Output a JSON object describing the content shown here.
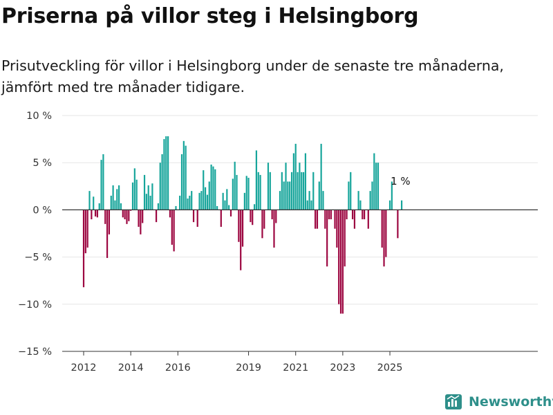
{
  "title": "Priserna på villor steg i Helsingborg",
  "subtitle": "Prisutveckling för villor i Helsingborg under de senaste tre månaderna, jämfört med tre månader tidigare.",
  "brand": "Newsworthy",
  "colors": {
    "positive": "#17a59b",
    "negative": "#9c0640",
    "grid": "#e6e6e6",
    "zero_line": "#333333",
    "brand": "#2e8f8a"
  },
  "chart_data": {
    "type": "bar",
    "x_start": "2012-01",
    "x_interval": "month",
    "ylim": [
      -15,
      10
    ],
    "y_ticks": [
      10,
      5,
      0,
      -5,
      -10,
      -15
    ],
    "y_tick_labels": [
      "10 %",
      "5 %",
      "0 %",
      "−5 %",
      "−10 %",
      "−15 %"
    ],
    "x_ticks": [
      "2012",
      "2014",
      "2016",
      "2019",
      "2021",
      "2023",
      "2025"
    ],
    "x_tick_dates": [
      "2012-01",
      "2014-01",
      "2016-01",
      "2019-01",
      "2021-01",
      "2023-01",
      "2025-01"
    ],
    "last_label": "1 %",
    "grid": true,
    "values": [
      -8.2,
      -4.6,
      -4.0,
      2.0,
      -1.0,
      1.4,
      -0.7,
      -0.8,
      0.7,
      5.3,
      5.9,
      -1.5,
      -5.1,
      -2.6,
      1.5,
      2.6,
      1.0,
      2.2,
      2.6,
      0.7,
      -0.8,
      -1.0,
      -1.5,
      -1.2,
      -0.1,
      2.9,
      4.4,
      3.2,
      -1.8,
      -2.6,
      -1.4,
      3.7,
      1.7,
      2.6,
      1.5,
      2.8,
      0.0,
      -1.3,
      0.7,
      5.0,
      5.9,
      7.5,
      7.8,
      7.8,
      -0.8,
      -3.7,
      -4.4,
      0.4,
      0.0,
      1.5,
      5.9,
      7.3,
      6.8,
      1.2,
      1.5,
      2.0,
      -1.3,
      0.0,
      -1.8,
      1.8,
      2.0,
      4.2,
      2.4,
      1.6,
      3.0,
      4.8,
      4.6,
      4.3,
      0.4,
      0.0,
      -1.8,
      1.8,
      1.0,
      2.2,
      0.5,
      -0.7,
      3.3,
      5.1,
      3.7,
      -3.4,
      -6.4,
      -3.9,
      1.8,
      3.6,
      3.4,
      -1.3,
      -1.6,
      0.6,
      6.3,
      4.0,
      3.7,
      -3.0,
      -2.0,
      0.0,
      5.0,
      4.0,
      -1.0,
      -4.0,
      -1.4,
      0.0,
      2.0,
      4.0,
      3.0,
      5.0,
      3.0,
      3.0,
      4.0,
      6.0,
      7.0,
      4.0,
      5.0,
      4.0,
      4.0,
      6.0,
      1.0,
      2.0,
      1.0,
      4.0,
      -2.0,
      -2.0,
      3.0,
      7.0,
      2.0,
      -2.0,
      -6.0,
      -1.0,
      -1.0,
      0.0,
      -2.0,
      -4.0,
      -10.0,
      -11.0,
      -11.0,
      -6.0,
      -1.0,
      3.0,
      4.0,
      -1.0,
      -2.0,
      0.0,
      2.0,
      1.0,
      -1.0,
      -1.0,
      0.0,
      -2.0,
      2.0,
      3.0,
      6.0,
      5.0,
      5.0,
      0.0,
      -4.0,
      -6.0,
      -5.0,
      0.0,
      1.0,
      3.0,
      0.0,
      0.0,
      -3.0,
      0.0,
      1.0
    ]
  }
}
